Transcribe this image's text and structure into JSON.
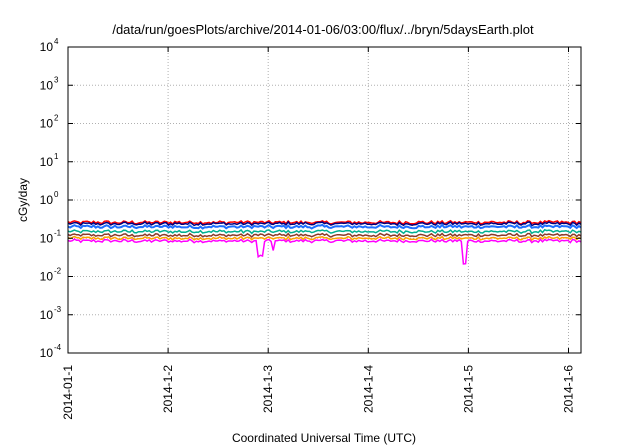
{
  "chart_data": {
    "type": "line",
    "title": "/data/run/goesPlots/archive/2014-01-06/03:00/flux/../bryn/5daysEarth.plot",
    "xlabel": "Coordinated Universal Time (UTC)",
    "ylabel": "cGy/day",
    "y_scale": "log",
    "ylim": [
      0.0001,
      10000
    ],
    "y_ticks": [
      {
        "base": "10",
        "exp": "4",
        "value": 10000
      },
      {
        "base": "10",
        "exp": "3",
        "value": 1000
      },
      {
        "base": "10",
        "exp": "2",
        "value": 100
      },
      {
        "base": "10",
        "exp": "1",
        "value": 10
      },
      {
        "base": "10",
        "exp": "0",
        "value": 1
      },
      {
        "base": "10",
        "exp": "-1",
        "value": 0.1
      },
      {
        "base": "10",
        "exp": "-2",
        "value": 0.01
      },
      {
        "base": "10",
        "exp": "-3",
        "value": 0.001
      },
      {
        "base": "10",
        "exp": "-4",
        "value": 0.0001
      }
    ],
    "xlim": [
      "2014-01-01",
      "2014-01-06 03:00"
    ],
    "x_ticks": [
      "2014-01-1",
      "2014-1-2",
      "2014-1-3",
      "2014-1-4",
      "2014-1-5",
      "2014-1-6"
    ],
    "grid": true,
    "series": [
      {
        "color": "#ff0000",
        "base": 0.26
      },
      {
        "color": "#000080",
        "base": 0.24
      },
      {
        "color": "#1e6fff",
        "base": 0.2
      },
      {
        "color": "#00b090",
        "base": 0.15
      },
      {
        "color": "#8b3a2a",
        "base": 0.12
      },
      {
        "color": "#ffa000",
        "base": 0.1
      },
      {
        "color": "#ff00ff",
        "base": 0.085
      }
    ]
  }
}
